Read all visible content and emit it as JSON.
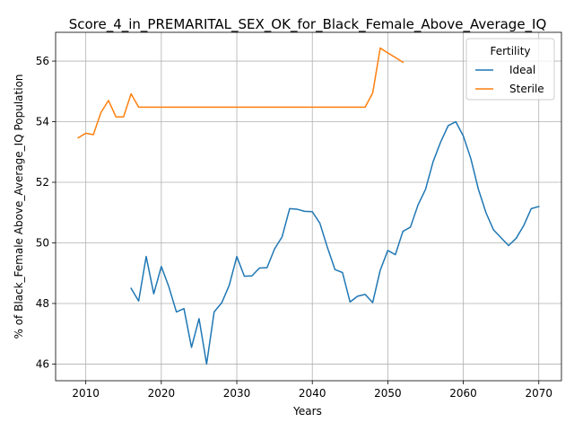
{
  "chart_data": {
    "type": "line",
    "title": "Score_4_in_PREMARITAL_SEX_OK_for_Black_Female_Above_Average_IQ",
    "xlabel": "Years",
    "ylabel": "% of Black_Female Above_Average_IQ Population",
    "xlim": [
      2006,
      2073
    ],
    "ylim": [
      45.45,
      56.95
    ],
    "xticks": [
      2010,
      2020,
      2030,
      2040,
      2050,
      2060,
      2070
    ],
    "yticks": [
      46,
      48,
      50,
      52,
      54,
      56
    ],
    "grid": true,
    "legend": {
      "title": "Fertility",
      "placement": "top-right"
    },
    "series": [
      {
        "name": "Ideal",
        "color": "#1f77b4",
        "x": [
          2016,
          2017,
          2018,
          2019,
          2020,
          2021,
          2022,
          2023,
          2024,
          2025,
          2026,
          2027,
          2028,
          2029,
          2030,
          2031,
          2032,
          2033,
          2034,
          2035,
          2036,
          2037,
          2038,
          2039,
          2040,
          2041,
          2042,
          2043,
          2044,
          2045,
          2046,
          2047,
          2048,
          2049,
          2050,
          2051,
          2052,
          2053,
          2054,
          2055,
          2056,
          2057,
          2058,
          2059,
          2060,
          2061,
          2062,
          2063,
          2064,
          2065,
          2066,
          2067,
          2068,
          2069,
          2070
        ],
        "values": [
          48.5,
          48.08,
          49.55,
          48.32,
          49.22,
          48.55,
          47.72,
          47.83,
          46.55,
          47.5,
          46.0,
          47.72,
          48.02,
          48.6,
          49.55,
          48.9,
          48.91,
          49.17,
          49.18,
          49.8,
          50.2,
          51.13,
          51.11,
          51.04,
          51.03,
          50.65,
          49.85,
          49.12,
          49.02,
          48.05,
          48.24,
          48.3,
          48.03,
          49.1,
          49.75,
          49.61,
          50.38,
          50.52,
          51.25,
          51.77,
          52.68,
          53.33,
          53.87,
          54.0,
          53.53,
          52.78,
          51.77,
          51.0,
          50.43,
          50.17,
          49.91,
          50.15,
          50.57,
          51.13,
          51.2
        ]
      },
      {
        "name": "Sterile",
        "color": "#ff7f0e",
        "x": [
          2009,
          2010,
          2011,
          2012,
          2013,
          2014,
          2015,
          2016,
          2017,
          2018,
          2019,
          2020,
          2021,
          2022,
          2023,
          2024,
          2025,
          2026,
          2027,
          2028,
          2029,
          2030,
          2031,
          2032,
          2033,
          2034,
          2035,
          2036,
          2037,
          2038,
          2039,
          2040,
          2041,
          2042,
          2043,
          2044,
          2045,
          2046,
          2047,
          2048,
          2049,
          2050,
          2051,
          2052
        ],
        "values": [
          53.47,
          53.62,
          53.57,
          54.3,
          54.7,
          54.16,
          54.16,
          54.92,
          54.48,
          54.48,
          54.48,
          54.48,
          54.48,
          54.48,
          54.48,
          54.48,
          54.48,
          54.48,
          54.48,
          54.48,
          54.48,
          54.48,
          54.48,
          54.48,
          54.48,
          54.48,
          54.48,
          54.48,
          54.48,
          54.48,
          54.48,
          54.48,
          54.48,
          54.48,
          54.48,
          54.48,
          54.48,
          54.48,
          54.48,
          54.95,
          56.43,
          56.27,
          56.12,
          55.96
        ]
      }
    ]
  }
}
